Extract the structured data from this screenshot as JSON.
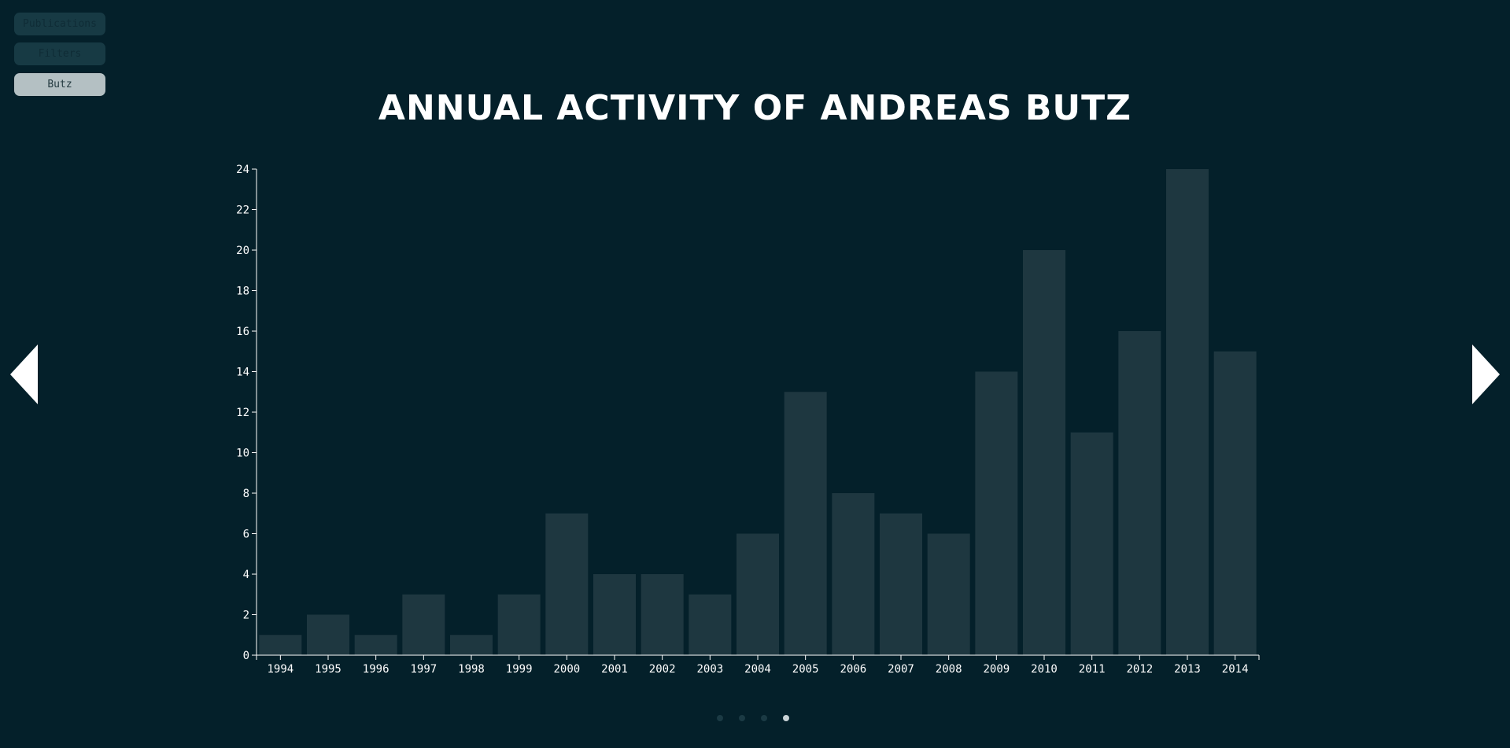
{
  "sidebar": {
    "publications_label": "Publications",
    "filters_label": "Filters",
    "butz_label": "Butz"
  },
  "colors": {
    "background": "#04202a",
    "bar": "#1e3740",
    "axis": "#ffffff",
    "dot_inactive": "#1b3a44",
    "dot_active": "#c9d3d6"
  },
  "pagination": {
    "count": 4,
    "active_index": 3
  },
  "chart_data": {
    "type": "bar",
    "title": "ANNUAL ACTIVITY OF ANDREAS BUTZ",
    "categories": [
      "1994",
      "1995",
      "1996",
      "1997",
      "1998",
      "1999",
      "2000",
      "2001",
      "2002",
      "2003",
      "2004",
      "2005",
      "2006",
      "2007",
      "2008",
      "2009",
      "2010",
      "2011",
      "2012",
      "2013",
      "2014"
    ],
    "values": [
      1,
      2,
      1,
      3,
      1,
      3,
      7,
      4,
      4,
      3,
      6,
      13,
      8,
      7,
      6,
      14,
      20,
      11,
      16,
      24,
      15
    ],
    "ylim": [
      0,
      24
    ],
    "yticks": [
      0,
      2,
      4,
      6,
      8,
      10,
      12,
      14,
      16,
      18,
      20,
      22,
      24
    ],
    "xlabel": "",
    "ylabel": "",
    "grid": false
  }
}
